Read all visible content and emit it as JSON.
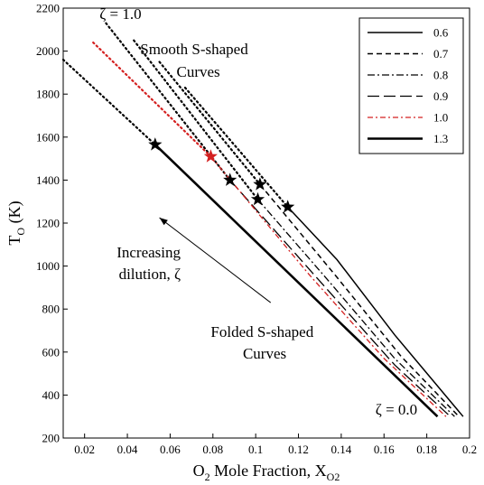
{
  "chart_data": {
    "type": "line",
    "xlabel": {
      "main": "O",
      "sub": "2",
      "rest": " Mole Fraction, X",
      "sub2": "O2"
    },
    "ylabel": {
      "main": "T",
      "sub": "O",
      "rest": " (K)"
    },
    "xlim": [
      0.01,
      0.2
    ],
    "ylim": [
      200,
      2200
    ],
    "x_ticks": [
      0.02,
      0.04,
      0.06,
      0.08,
      0.1,
      0.12,
      0.14,
      0.16,
      0.18,
      0.2
    ],
    "x_tick_labels": [
      "0.02",
      "0.04",
      "0.06",
      "0.08",
      "0.1",
      "0.12",
      "0.14",
      "0.16",
      "0.18",
      "0.2"
    ],
    "y_ticks": [
      200,
      400,
      600,
      800,
      1000,
      1200,
      1400,
      1600,
      1800,
      2000,
      2200
    ],
    "y_tick_labels": [
      "200",
      "400",
      "600",
      "800",
      "1000",
      "1200",
      "1400",
      "1600",
      "1800",
      "2000",
      "2200"
    ],
    "legend_position": "top-right",
    "series": [
      {
        "name": "0.6",
        "style": "solid",
        "color": "#000000",
        "width": 1.5,
        "solid": [
          [
            0.115,
            1275
          ],
          [
            0.138,
            1030
          ],
          [
            0.165,
            680
          ],
          [
            0.197,
            300
          ]
        ],
        "dotted": [
          [
            0.067,
            1830
          ],
          [
            0.115,
            1275
          ]
        ],
        "star": [
          0.115,
          1275
        ]
      },
      {
        "name": "0.7",
        "style": "dashed",
        "color": "#000000",
        "width": 1.5,
        "solid": [
          [
            0.102,
            1380
          ],
          [
            0.137,
            960
          ],
          [
            0.168,
            580
          ],
          [
            0.195,
            300
          ]
        ],
        "dotted": [
          [
            0.055,
            1950
          ],
          [
            0.102,
            1380
          ]
        ],
        "star": [
          0.102,
          1380
        ]
      },
      {
        "name": "0.8",
        "style": "dashdot",
        "color": "#000000",
        "width": 1.3,
        "solid": [
          [
            0.101,
            1310
          ],
          [
            0.135,
            920
          ],
          [
            0.165,
            570
          ],
          [
            0.193,
            300
          ]
        ],
        "dotted": [
          [
            0.043,
            2050
          ],
          [
            0.101,
            1310
          ]
        ],
        "star": [
          0.101,
          1310
        ]
      },
      {
        "name": "0.9",
        "style": "longdash",
        "color": "#000000",
        "width": 1.3,
        "solid": [
          [
            0.088,
            1400
          ],
          [
            0.13,
            930
          ],
          [
            0.165,
            540
          ],
          [
            0.191,
            300
          ]
        ],
        "dotted": [
          [
            0.03,
            2130
          ],
          [
            0.088,
            1400
          ]
        ],
        "star": [
          0.088,
          1400
        ]
      },
      {
        "name": "1.0",
        "style": "dashdot-red",
        "color": "#d42020",
        "width": 1.3,
        "solid": [
          [
            0.079,
            1510
          ],
          [
            0.125,
            960
          ],
          [
            0.16,
            570
          ],
          [
            0.189,
            300
          ]
        ],
        "dotted": [
          [
            0.024,
            2040
          ],
          [
            0.079,
            1510
          ]
        ],
        "star": [
          0.079,
          1510
        ]
      },
      {
        "name": "1.3",
        "style": "solid-thick",
        "color": "#000000",
        "width": 2.6,
        "solid": [
          [
            0.053,
            1565
          ],
          [
            0.185,
            300
          ]
        ],
        "dotted": [
          [
            0.01,
            1960
          ],
          [
            0.053,
            1565
          ]
        ],
        "star": [
          0.053,
          1565
        ]
      }
    ],
    "annotations": [
      {
        "text": "ζ = 1.0",
        "at": [
          0.027,
          2150
        ]
      },
      {
        "text": "Smooth S-shaped",
        "at": [
          0.046,
          1985
        ]
      },
      {
        "text": "Curves",
        "at": [
          0.063,
          1880
        ]
      },
      {
        "text": "Increasing",
        "at": [
          0.035,
          1040
        ]
      },
      {
        "text": "dilution, ζ",
        "at": [
          0.036,
          940
        ]
      },
      {
        "text": "Folded S-shaped",
        "at": [
          0.079,
          670
        ]
      },
      {
        "text": "Curves",
        "at": [
          0.094,
          570
        ]
      },
      {
        "text": "ζ = 0.0",
        "at": [
          0.156,
          310
        ]
      }
    ],
    "arrow": {
      "from": [
        0.107,
        830
      ],
      "to": [
        0.055,
        1225
      ]
    }
  }
}
